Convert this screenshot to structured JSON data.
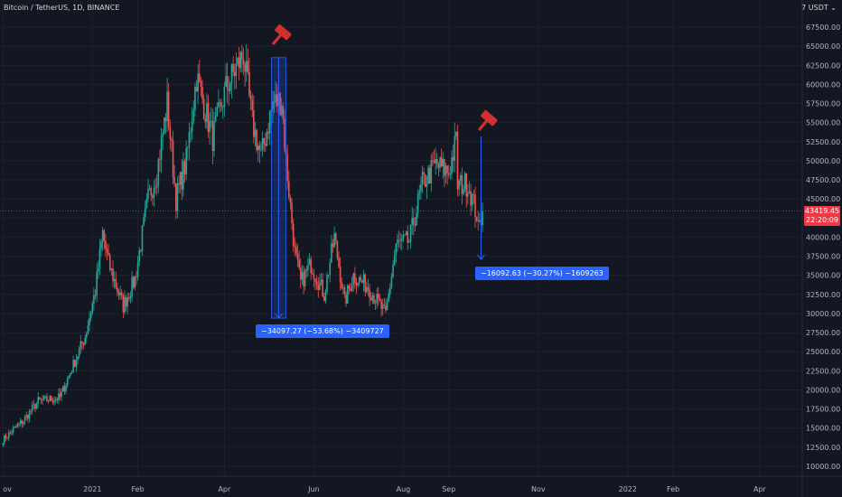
{
  "header": {
    "symbol_title": "Bitcoin / TetherUS, 1D, BINANCE",
    "currency": "USDT",
    "currency_prefix": "7"
  },
  "current_price": {
    "value": 43419.45,
    "label": "43419.45",
    "countdown": "22:20:09"
  },
  "measurements": [
    {
      "label": "−34097.27 (−53.68%) −3409727",
      "from_price": 63500,
      "to_price": 29400,
      "from_date": "2021-05-08",
      "to_date": "2021-05-08"
    },
    {
      "label": "−16092.63 (−30.27%) −1609263",
      "from_price": 53200,
      "to_price": 37100,
      "from_date": "2021-09-23",
      "to_date": "2021-09-23"
    }
  ],
  "icons": [
    "gavel-icon",
    "gavel-icon"
  ],
  "colors": {
    "background": "#131722",
    "bull": "#26a69a",
    "bear": "#ef5350",
    "price_line": "#f23645",
    "measure": "#2962ff",
    "gavel": "#d32f2f"
  },
  "chart_data": {
    "type": "candlestick",
    "x_ticks": [
      "ov",
      "2021",
      "Feb",
      "Apr",
      "Jun",
      "Aug",
      "Sep",
      "Nov",
      "2022",
      "Feb",
      "Apr"
    ],
    "y_ticks": [
      "10000.00",
      "12500.00",
      "15000.00",
      "17500.00",
      "20000.00",
      "22500.00",
      "25000.00",
      "27500.00",
      "30000.00",
      "32500.00",
      "35000.00",
      "37500.00",
      "40000.00",
      "42500.00",
      "45000.00",
      "47500.00",
      "50000.00",
      "52500.00",
      "55000.00",
      "57500.00",
      "60000.00",
      "62500.00",
      "65000.00",
      "67500.00"
    ],
    "ylim": [
      8500,
      69000
    ],
    "xlim": [
      "2020-10-30",
      "2022-04-30"
    ],
    "grid": true,
    "close_anchors": [
      [
        "2020-11-01",
        13500
      ],
      [
        "2020-11-15",
        16000
      ],
      [
        "2020-11-25",
        18500
      ],
      [
        "2020-12-10",
        19000
      ],
      [
        "2020-12-18",
        22800
      ],
      [
        "2020-12-27",
        27000
      ],
      [
        "2021-01-03",
        33000
      ],
      [
        "2021-01-08",
        40500
      ],
      [
        "2021-01-12",
        36500
      ],
      [
        "2021-01-22",
        31000
      ],
      [
        "2021-01-30",
        34500
      ],
      [
        "2021-02-08",
        45000
      ],
      [
        "2021-02-14",
        48500
      ],
      [
        "2021-02-21",
        57500
      ],
      [
        "2021-02-27",
        45000
      ],
      [
        "2021-03-06",
        50000
      ],
      [
        "2021-03-13",
        61000
      ],
      [
        "2021-03-24",
        53000
      ],
      [
        "2021-04-02",
        59500
      ],
      [
        "2021-04-14",
        64000
      ],
      [
        "2021-04-20",
        55000
      ],
      [
        "2021-04-26",
        50500
      ],
      [
        "2021-05-04",
        57500
      ],
      [
        "2021-05-10",
        58000
      ],
      [
        "2021-05-13",
        50000
      ],
      [
        "2021-05-19",
        38000
      ],
      [
        "2021-05-23",
        34000
      ],
      [
        "2021-05-30",
        36500
      ],
      [
        "2021-06-08",
        32500
      ],
      [
        "2021-06-15",
        40000
      ],
      [
        "2021-06-22",
        31500
      ],
      [
        "2021-06-28",
        35000
      ],
      [
        "2021-07-08",
        33500
      ],
      [
        "2021-07-20",
        29800
      ],
      [
        "2021-07-27",
        39000
      ],
      [
        "2021-08-05",
        39500
      ],
      [
        "2021-08-14",
        47000
      ],
      [
        "2021-08-23",
        49500
      ],
      [
        "2021-09-01",
        48500
      ],
      [
        "2021-09-06",
        52600
      ],
      [
        "2021-09-07",
        46800
      ],
      [
        "2021-09-14",
        47000
      ],
      [
        "2021-09-20",
        43000
      ],
      [
        "2021-09-21",
        40800
      ],
      [
        "2021-09-24",
        43419
      ]
    ]
  }
}
